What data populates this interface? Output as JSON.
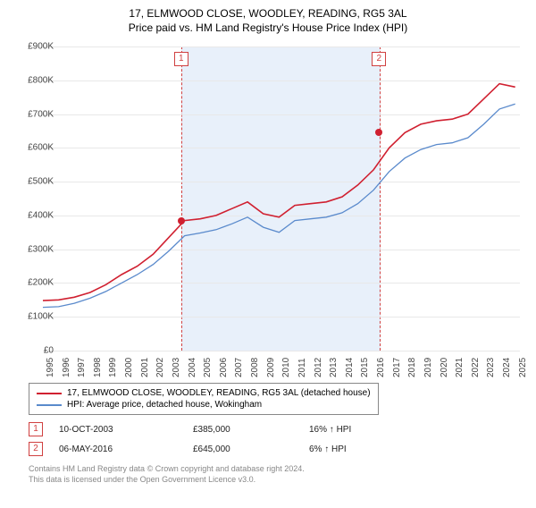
{
  "title": "17, ELMWOOD CLOSE, WOODLEY, READING, RG5 3AL",
  "subtitle": "Price paid vs. HM Land Registry's House Price Index (HPI)",
  "chart": {
    "type": "line",
    "background_color": "#ffffff",
    "grid_color": "#e8e8e8",
    "x_years": [
      1995,
      1996,
      1997,
      1998,
      1999,
      2000,
      2001,
      2002,
      2003,
      2004,
      2005,
      2006,
      2007,
      2008,
      2009,
      2010,
      2011,
      2012,
      2013,
      2014,
      2015,
      2016,
      2017,
      2018,
      2019,
      2020,
      2021,
      2022,
      2023,
      2024,
      2025
    ],
    "xlim": [
      1995,
      2025.3
    ],
    "ylim": [
      0,
      900
    ],
    "ytick_step": 100,
    "ytick_labels": [
      "£0",
      "£100K",
      "£200K",
      "£300K",
      "£400K",
      "£500K",
      "£600K",
      "£700K",
      "£800K",
      "£900K"
    ],
    "axis_font_size": 10,
    "axis_color": "#444444",
    "highlight_band": {
      "start": 2003.78,
      "end": 2016.35,
      "fill": "rgba(130,170,230,0.18)",
      "border_color": "#d04040"
    },
    "series": [
      {
        "name": "17, ELMWOOD CLOSE, WOODLEY, READING, RG5 3AL (detached house)",
        "color": "#d02030",
        "line_width": 1.6,
        "y": [
          148,
          150,
          158,
          172,
          195,
          225,
          250,
          285,
          335,
          385,
          390,
          400,
          420,
          440,
          405,
          395,
          430,
          435,
          440,
          455,
          490,
          535,
          600,
          645,
          670,
          680,
          685,
          700,
          745,
          790,
          780
        ]
      },
      {
        "name": "HPI: Average price, detached house, Wokingham",
        "color": "#5a8acc",
        "line_width": 1.3,
        "y": [
          128,
          130,
          140,
          155,
          175,
          200,
          225,
          255,
          295,
          340,
          348,
          358,
          375,
          395,
          365,
          350,
          385,
          390,
          395,
          408,
          435,
          475,
          530,
          570,
          595,
          610,
          615,
          630,
          670,
          715,
          730
        ]
      }
    ],
    "markers_top": [
      {
        "label": "1",
        "year": 2003.78
      },
      {
        "label": "2",
        "year": 2016.35
      }
    ],
    "sale_points": [
      {
        "year": 2003.78,
        "value": 385,
        "color": "#d02030"
      },
      {
        "year": 2016.35,
        "value": 645,
        "color": "#d02030"
      }
    ]
  },
  "legend": {
    "items": [
      {
        "label": "17, ELMWOOD CLOSE, WOODLEY, READING, RG5 3AL (detached house)",
        "color": "#d02030"
      },
      {
        "label": "HPI: Average price, detached house, Wokingham",
        "color": "#5a8acc"
      }
    ]
  },
  "sales": [
    {
      "marker": "1",
      "date": "10-OCT-2003",
      "price": "£385,000",
      "pct": "16% ↑ HPI"
    },
    {
      "marker": "2",
      "date": "06-MAY-2016",
      "price": "£645,000",
      "pct": "6% ↑ HPI"
    }
  ],
  "footer_line1": "Contains HM Land Registry data © Crown copyright and database right 2024.",
  "footer_line2": "This data is licensed under the Open Government Licence v3.0."
}
